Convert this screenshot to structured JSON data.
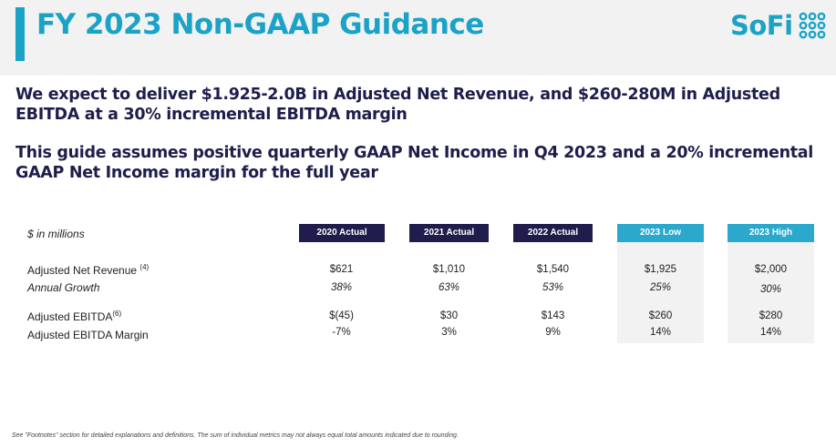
{
  "header": {
    "title": "FY 2023 Non-GAAP Guidance",
    "logo_text": "SoFi",
    "accent_color": "#1aa3c7"
  },
  "headlines": [
    "We expect to deliver $1.925-2.0B in Adjusted Net Revenue, and $260-280M in Adjusted EBITDA at a 30% incremental EBITDA margin",
    "This guide assumes positive quarterly GAAP Net Income in Q4 2023 and a 20% incremental GAAP Net Income margin for the full year"
  ],
  "table": {
    "unit_label": "$ in millions",
    "columns": [
      "2020 Actual",
      "2021 Actual",
      "2022 Actual",
      "2023 Low",
      "2023 High"
    ],
    "rows": [
      {
        "label": "Adjusted Net Revenue",
        "footnote": "(4)",
        "values": [
          "$621",
          "$1,010",
          "$1,540",
          "$1,925",
          "$2,000"
        ]
      },
      {
        "label": "Annual Growth",
        "footnote": "",
        "values": [
          "38%",
          "63%",
          "53%",
          "25%",
          "30%"
        ]
      },
      {
        "label": "Adjusted EBITDA",
        "footnote": "(6)",
        "values": [
          "$(45)",
          "$30",
          "$143",
          "$260",
          "$280"
        ]
      },
      {
        "label": "Adjusted EBITDA Margin",
        "footnote": "",
        "values": [
          "-7%",
          "3%",
          "9%",
          "14%",
          "14%"
        ]
      }
    ]
  },
  "footnote": "See \"Footnotes\" section for detailed explanations and definitions. The sum of individual metrics may not always equal total amounts indicated due to rounding."
}
